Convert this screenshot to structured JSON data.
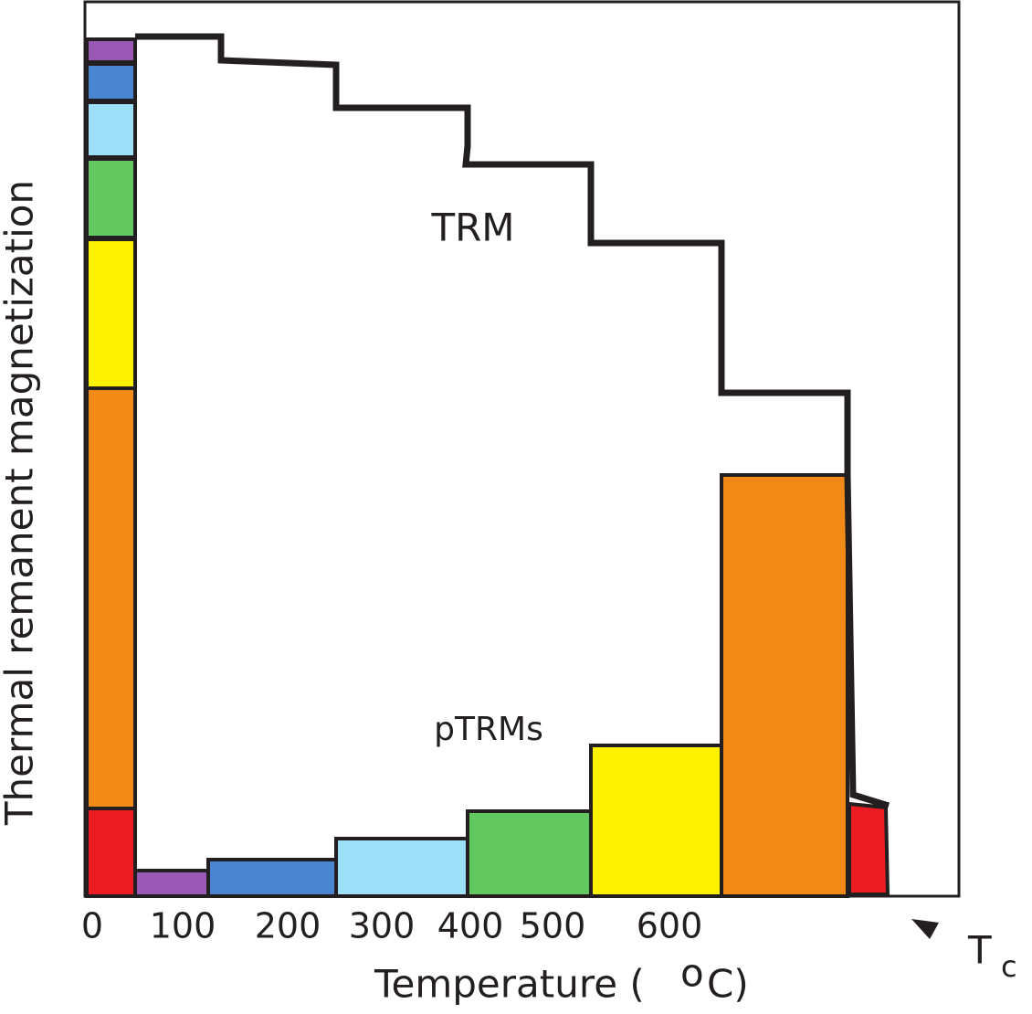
{
  "y_axis_label": "Thermal remanent magnetization",
  "x_axis": {
    "label": "Temperature (",
    "degree": "o",
    "unit": "C)",
    "ticks": [
      "0",
      "100",
      "200",
      "300",
      "400",
      "500",
      "600"
    ]
  },
  "curve_label": "TRM",
  "bars_label": "pTRMs",
  "curie": {
    "symbol": "T",
    "subscript": "c"
  }
}
